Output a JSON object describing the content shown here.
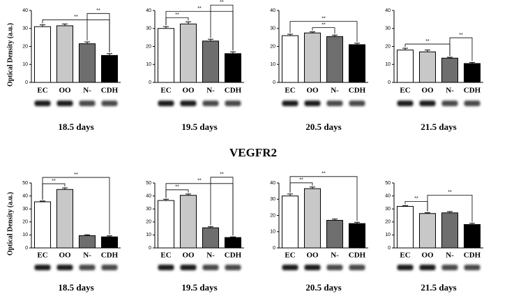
{
  "label": "VEGFR2",
  "chart_data": [
    {
      "type": "bar",
      "title": "18.5 days",
      "ylabel": "Optical Density (a.u.)",
      "categories": [
        "EC",
        "OO",
        "N-",
        "CDH"
      ],
      "values": [
        31,
        31.5,
        21.5,
        15
      ],
      "errors": [
        1,
        1,
        1,
        1
      ],
      "colors": [
        "#ffffff",
        "#c8c8c8",
        "#6e6e6e",
        "#000000"
      ],
      "ylim": [
        0,
        40
      ],
      "yticks": [
        0,
        10,
        20,
        30,
        40
      ],
      "annotations": [
        {
          "text": "**",
          "between": [
            "EC",
            "CDH"
          ]
        },
        {
          "text": "**",
          "between": [
            "N-",
            "CDH"
          ]
        }
      ]
    },
    {
      "type": "bar",
      "title": "19.5 days",
      "categories": [
        "EC",
        "OO",
        "N-",
        "CDH"
      ],
      "values": [
        30,
        32.5,
        23,
        16
      ],
      "errors": [
        1,
        1.2,
        1,
        1
      ],
      "colors": [
        "#ffffff",
        "#c8c8c8",
        "#6e6e6e",
        "#000000"
      ],
      "ylim": [
        0,
        40
      ],
      "yticks": [
        0,
        10,
        20,
        30,
        40
      ],
      "annotations": [
        {
          "text": "**",
          "between": [
            "EC",
            "OO"
          ]
        },
        {
          "text": "**",
          "between": [
            "EC",
            "CDH"
          ]
        },
        {
          "text": "**",
          "between": [
            "N-",
            "CDH"
          ]
        }
      ]
    },
    {
      "type": "bar",
      "title": "20.5 days",
      "categories": [
        "EC",
        "OO",
        "N-",
        "CDH"
      ],
      "values": [
        26,
        27.5,
        25.5,
        21
      ],
      "errors": [
        0.8,
        0.6,
        0.8,
        0.8
      ],
      "colors": [
        "#ffffff",
        "#c8c8c8",
        "#6e6e6e",
        "#000000"
      ],
      "ylim": [
        0,
        40
      ],
      "yticks": [
        0,
        10,
        20,
        30,
        40
      ],
      "annotations": [
        {
          "text": "**",
          "between": [
            "OO",
            "N-"
          ]
        },
        {
          "text": "**",
          "between": [
            "EC",
            "CDH"
          ]
        }
      ]
    },
    {
      "type": "bar",
      "title": "21.5 days",
      "categories": [
        "EC",
        "OO",
        "N-",
        "CDH"
      ],
      "values": [
        18,
        17,
        13.5,
        10.5
      ],
      "errors": [
        1,
        1,
        0.5,
        0.6
      ],
      "colors": [
        "#ffffff",
        "#c8c8c8",
        "#6e6e6e",
        "#000000"
      ],
      "ylim": [
        0,
        40
      ],
      "yticks": [
        0,
        10,
        20,
        30,
        40
      ],
      "annotations": [
        {
          "text": "**",
          "between": [
            "EC",
            "N-"
          ]
        },
        {
          "text": "**",
          "between": [
            "N-",
            "CDH"
          ]
        }
      ]
    },
    {
      "type": "bar",
      "title": "18.5 days",
      "ylabel": "Optical Density (a.u.)",
      "categories": [
        "EC",
        "OO",
        "N-",
        "CDH"
      ],
      "values": [
        35.5,
        45,
        9.5,
        8.5
      ],
      "errors": [
        0.6,
        1.2,
        0.6,
        0.8
      ],
      "colors": [
        "#ffffff",
        "#c8c8c8",
        "#6e6e6e",
        "#000000"
      ],
      "ylim": [
        0,
        50
      ],
      "yticks": [
        0,
        10,
        20,
        30,
        40,
        50
      ],
      "annotations": [
        {
          "text": "**",
          "between": [
            "EC",
            "OO"
          ]
        },
        {
          "text": "**",
          "between": [
            "EC",
            "CDH"
          ]
        }
      ]
    },
    {
      "type": "bar",
      "title": "19.5 days",
      "categories": [
        "EC",
        "OO",
        "N-",
        "CDH"
      ],
      "values": [
        36.5,
        40.5,
        15.5,
        8
      ],
      "errors": [
        1,
        1,
        0.8,
        0.5
      ],
      "colors": [
        "#ffffff",
        "#c8c8c8",
        "#6e6e6e",
        "#000000"
      ],
      "ylim": [
        0,
        50
      ],
      "yticks": [
        0,
        10,
        20,
        30,
        40,
        50
      ],
      "annotations": [
        {
          "text": "**",
          "between": [
            "EC",
            "OO"
          ]
        },
        {
          "text": "**",
          "between": [
            "EC",
            "CDH"
          ]
        },
        {
          "text": "**",
          "between": [
            "N-",
            "CDH"
          ]
        }
      ]
    },
    {
      "type": "bar",
      "title": "20.5 days",
      "categories": [
        "EC",
        "OO",
        "N-",
        "CDH"
      ],
      "values": [
        32,
        36.5,
        17,
        15
      ],
      "errors": [
        1.2,
        1,
        0.8,
        0.8
      ],
      "colors": [
        "#ffffff",
        "#c8c8c8",
        "#6e6e6e",
        "#000000"
      ],
      "ylim": [
        0,
        40
      ],
      "yticks": [
        0,
        10,
        20,
        30,
        40
      ],
      "annotations": [
        {
          "text": "**",
          "between": [
            "EC",
            "OO"
          ]
        },
        {
          "text": "**",
          "between": [
            "EC",
            "CDH"
          ]
        }
      ]
    },
    {
      "type": "bar",
      "title": "21.5 days",
      "categories": [
        "EC",
        "OO",
        "N-",
        "CDH"
      ],
      "values": [
        32,
        26.5,
        27,
        18
      ],
      "errors": [
        0.6,
        0.6,
        1,
        1
      ],
      "colors": [
        "#ffffff",
        "#c8c8c8",
        "#6e6e6e",
        "#000000"
      ],
      "ylim": [
        0,
        50
      ],
      "yticks": [
        0,
        10,
        20,
        30,
        40,
        50
      ],
      "annotations": [
        {
          "text": "**",
          "between": [
            "EC",
            "OO"
          ]
        },
        {
          "text": "**",
          "between": [
            "OO",
            "CDH"
          ]
        }
      ]
    }
  ]
}
